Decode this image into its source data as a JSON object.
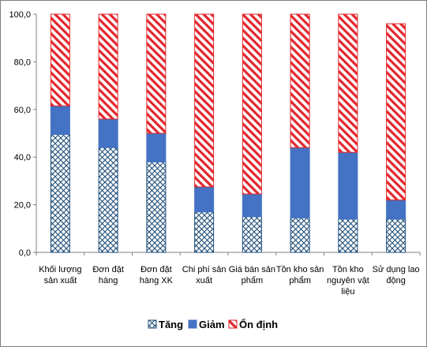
{
  "chart_data": {
    "type": "bar",
    "stacked": true,
    "categories": [
      [
        "Khối lượng",
        "sản xuất"
      ],
      [
        "Đơn đặt",
        "hàng"
      ],
      [
        "Đơn đặt",
        "hàng XK"
      ],
      [
        "Chi phí sản",
        "xuất"
      ],
      [
        "Giá bán sản",
        "phẩm"
      ],
      [
        "Tồn kho sản",
        "phẩm"
      ],
      [
        "Tồn kho",
        "nguyên vật",
        "liệu"
      ],
      [
        "Sử dụng lao",
        "động"
      ]
    ],
    "series": [
      {
        "name": "Tăng",
        "color": "#1f4e79",
        "pattern": "crosshatch",
        "values": [
          49.5,
          44.0,
          38.0,
          17.0,
          15.0,
          14.5,
          14.0,
          14.0
        ]
      },
      {
        "name": "Giảm",
        "color": "#4472c4",
        "pattern": "solid",
        "values": [
          12.0,
          12.0,
          12.0,
          10.5,
          9.5,
          29.5,
          28.0,
          8.0
        ]
      },
      {
        "name": "Ổn định",
        "color": "#e3262a",
        "pattern": "diagonal",
        "values": [
          38.5,
          44.0,
          50.0,
          72.5,
          75.5,
          56.0,
          58.0,
          74.0
        ]
      }
    ],
    "ylim": [
      0,
      100
    ],
    "yticks": [
      "0,0",
      "20,0",
      "40,0",
      "60,0",
      "80,0",
      "100,0"
    ],
    "grid": false,
    "legend_position": "bottom"
  }
}
